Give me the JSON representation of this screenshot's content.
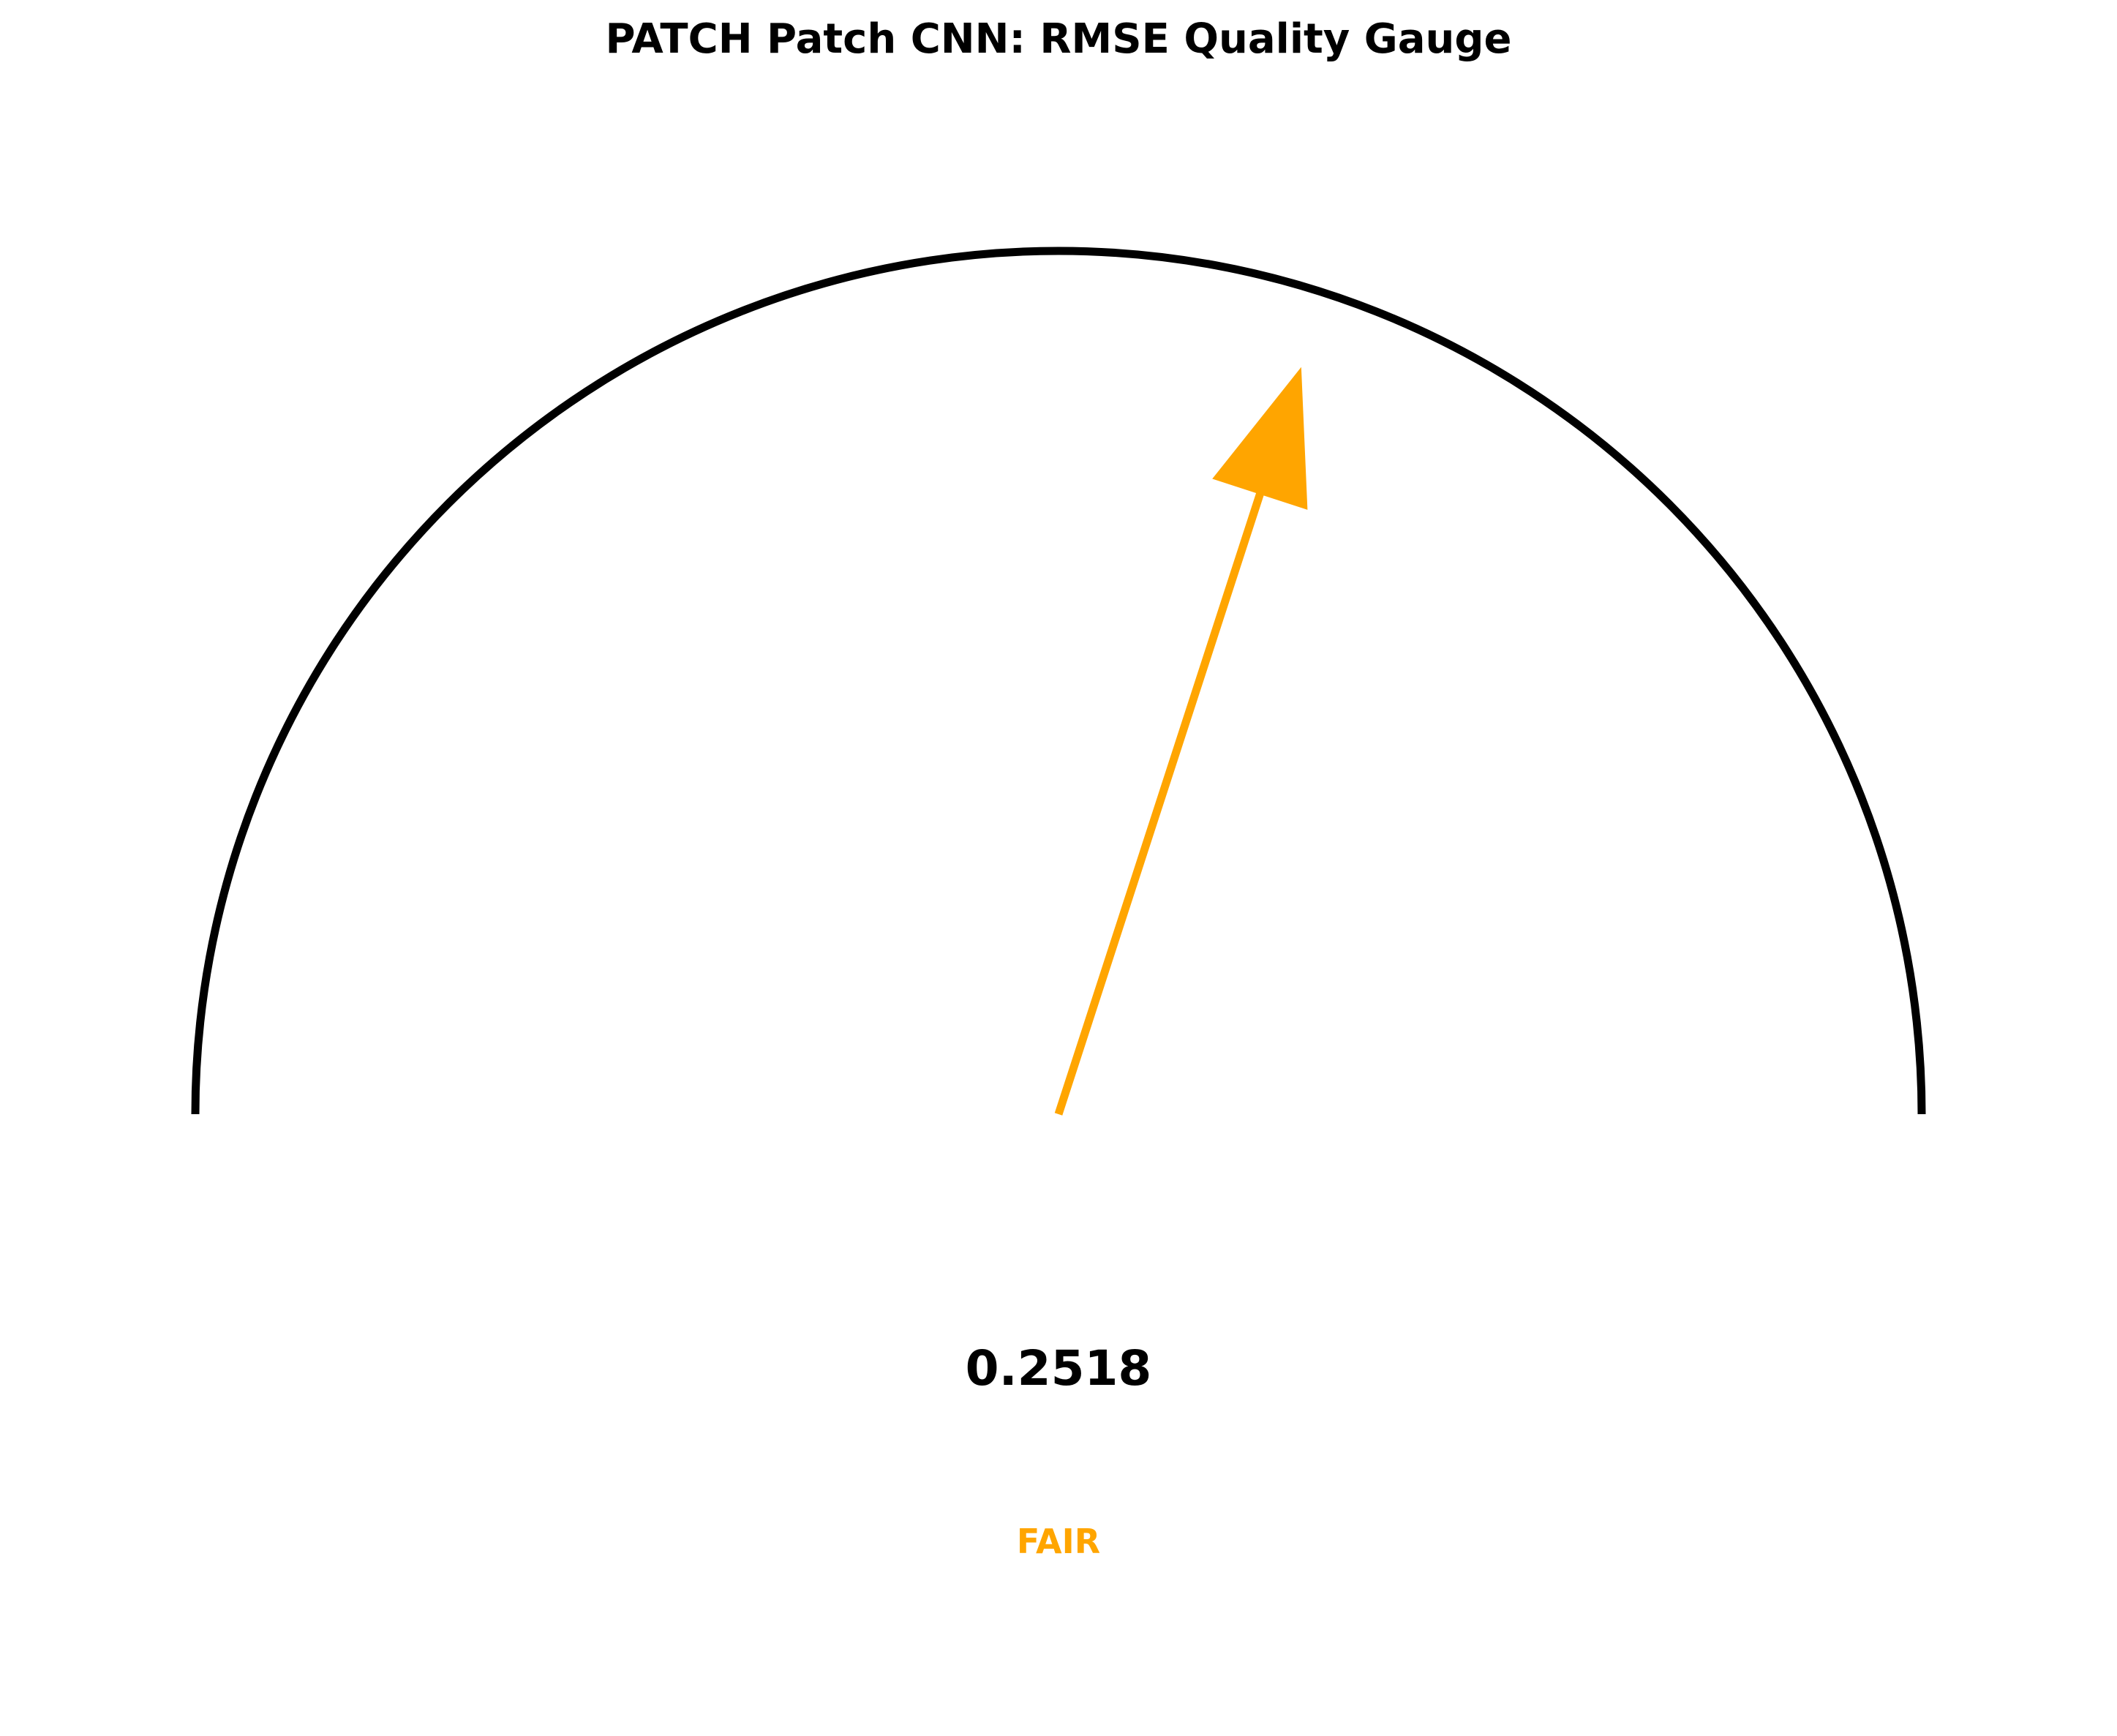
{
  "chart_data": {
    "type": "gauge",
    "title": "PATCH Patch CNN: RMSE Quality Gauge",
    "metric": "RMSE",
    "value": 0.2518,
    "value_label": "0.2518",
    "status": "FAIR",
    "needle_position_fraction": 0.6,
    "grid": false,
    "colors": {
      "arc": "#000000",
      "needle": "#FFA500",
      "status": "#FFA500",
      "background": "#ffffff"
    }
  }
}
